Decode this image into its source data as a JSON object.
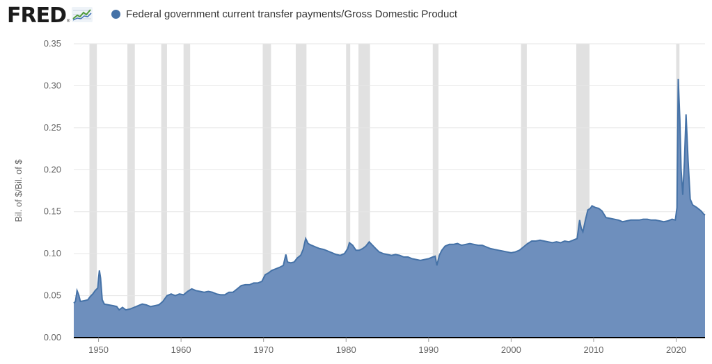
{
  "header": {
    "logo_text": "FRED",
    "logo_mark": "®",
    "logo_icon": "line-chart-icon"
  },
  "colors": {
    "series": "#4572a7",
    "fill": "#6e8fbd",
    "recession": "#e1e1e1",
    "grid": "#e6e6e6",
    "axis": "#000000",
    "text": "#666666"
  },
  "chart_data": {
    "type": "area",
    "title": "",
    "ylabel": "Bil. of $/Bil. of $",
    "xlabel": "",
    "ylim": [
      0,
      0.35
    ],
    "xlim": [
      1947.0,
      2023.5
    ],
    "grid": true,
    "legend_position": "top-left",
    "x_ticks": [
      "1950",
      "1960",
      "1970",
      "1980",
      "1990",
      "2000",
      "2010",
      "2020"
    ],
    "y_ticks": [
      "0.00",
      "0.05",
      "0.10",
      "0.15",
      "0.20",
      "0.25",
      "0.30",
      "0.35"
    ],
    "recessions": [
      [
        1948.9,
        1949.8
      ],
      [
        1953.5,
        1954.4
      ],
      [
        1957.6,
        1958.3
      ],
      [
        1960.3,
        1961.1
      ],
      [
        1969.9,
        1970.9
      ],
      [
        1973.9,
        1975.2
      ],
      [
        1980.0,
        1980.5
      ],
      [
        1981.5,
        1982.9
      ],
      [
        1990.5,
        1991.2
      ],
      [
        2001.2,
        2001.9
      ],
      [
        2007.9,
        2009.5
      ],
      [
        2020.0,
        2020.4
      ]
    ],
    "series": [
      {
        "name": "Federal government current transfer payments/Gross Domestic Product",
        "points": [
          [
            1947.0,
            0.041
          ],
          [
            1947.2,
            0.043
          ],
          [
            1947.4,
            0.056
          ],
          [
            1947.6,
            0.051
          ],
          [
            1947.8,
            0.043
          ],
          [
            1948.3,
            0.044
          ],
          [
            1948.7,
            0.045
          ],
          [
            1949.0,
            0.049
          ],
          [
            1949.3,
            0.052
          ],
          [
            1949.6,
            0.056
          ],
          [
            1949.9,
            0.059
          ],
          [
            1950.0,
            0.071
          ],
          [
            1950.1,
            0.08
          ],
          [
            1950.25,
            0.071
          ],
          [
            1950.45,
            0.045
          ],
          [
            1950.7,
            0.04
          ],
          [
            1951.2,
            0.039
          ],
          [
            1951.8,
            0.038
          ],
          [
            1952.2,
            0.037
          ],
          [
            1952.5,
            0.033
          ],
          [
            1952.9,
            0.036
          ],
          [
            1953.3,
            0.033
          ],
          [
            1953.8,
            0.034
          ],
          [
            1954.3,
            0.036
          ],
          [
            1954.8,
            0.038
          ],
          [
            1955.3,
            0.04
          ],
          [
            1955.8,
            0.039
          ],
          [
            1956.3,
            0.037
          ],
          [
            1956.8,
            0.038
          ],
          [
            1957.3,
            0.039
          ],
          [
            1957.8,
            0.043
          ],
          [
            1958.3,
            0.05
          ],
          [
            1958.8,
            0.052
          ],
          [
            1959.3,
            0.05
          ],
          [
            1959.8,
            0.052
          ],
          [
            1960.3,
            0.051
          ],
          [
            1960.8,
            0.055
          ],
          [
            1961.3,
            0.058
          ],
          [
            1961.8,
            0.056
          ],
          [
            1962.3,
            0.055
          ],
          [
            1962.8,
            0.054
          ],
          [
            1963.3,
            0.055
          ],
          [
            1963.8,
            0.054
          ],
          [
            1964.3,
            0.052
          ],
          [
            1964.8,
            0.051
          ],
          [
            1965.3,
            0.051
          ],
          [
            1965.8,
            0.054
          ],
          [
            1966.3,
            0.054
          ],
          [
            1966.8,
            0.058
          ],
          [
            1967.3,
            0.062
          ],
          [
            1967.8,
            0.063
          ],
          [
            1968.3,
            0.063
          ],
          [
            1968.8,
            0.065
          ],
          [
            1969.3,
            0.065
          ],
          [
            1969.8,
            0.067
          ],
          [
            1970.2,
            0.075
          ],
          [
            1970.6,
            0.077
          ],
          [
            1971.0,
            0.08
          ],
          [
            1971.5,
            0.082
          ],
          [
            1972.0,
            0.084
          ],
          [
            1972.4,
            0.086
          ],
          [
            1972.7,
            0.099
          ],
          [
            1972.9,
            0.09
          ],
          [
            1973.3,
            0.089
          ],
          [
            1973.7,
            0.09
          ],
          [
            1974.1,
            0.095
          ],
          [
            1974.5,
            0.098
          ],
          [
            1974.8,
            0.105
          ],
          [
            1975.1,
            0.118
          ],
          [
            1975.4,
            0.112
          ],
          [
            1975.8,
            0.11
          ],
          [
            1976.3,
            0.108
          ],
          [
            1976.8,
            0.106
          ],
          [
            1977.3,
            0.105
          ],
          [
            1977.8,
            0.103
          ],
          [
            1978.3,
            0.101
          ],
          [
            1978.8,
            0.099
          ],
          [
            1979.3,
            0.098
          ],
          [
            1979.8,
            0.1
          ],
          [
            1980.2,
            0.106
          ],
          [
            1980.4,
            0.113
          ],
          [
            1980.8,
            0.11
          ],
          [
            1981.2,
            0.104
          ],
          [
            1981.6,
            0.104
          ],
          [
            1982.0,
            0.106
          ],
          [
            1982.4,
            0.109
          ],
          [
            1982.8,
            0.114
          ],
          [
            1983.2,
            0.11
          ],
          [
            1983.6,
            0.106
          ],
          [
            1984.0,
            0.102
          ],
          [
            1984.5,
            0.1
          ],
          [
            1985.0,
            0.099
          ],
          [
            1985.5,
            0.098
          ],
          [
            1986.0,
            0.099
          ],
          [
            1986.5,
            0.098
          ],
          [
            1987.0,
            0.096
          ],
          [
            1987.5,
            0.096
          ],
          [
            1988.0,
            0.094
          ],
          [
            1988.5,
            0.093
          ],
          [
            1989.0,
            0.092
          ],
          [
            1989.5,
            0.093
          ],
          [
            1990.0,
            0.094
          ],
          [
            1990.5,
            0.096
          ],
          [
            1990.8,
            0.097
          ],
          [
            1991.0,
            0.086
          ],
          [
            1991.3,
            0.098
          ],
          [
            1991.6,
            0.104
          ],
          [
            1992.0,
            0.109
          ],
          [
            1992.5,
            0.111
          ],
          [
            1993.0,
            0.111
          ],
          [
            1993.5,
            0.112
          ],
          [
            1994.0,
            0.11
          ],
          [
            1994.5,
            0.111
          ],
          [
            1995.0,
            0.112
          ],
          [
            1995.5,
            0.111
          ],
          [
            1996.0,
            0.11
          ],
          [
            1996.5,
            0.11
          ],
          [
            1997.0,
            0.108
          ],
          [
            1997.5,
            0.106
          ],
          [
            1998.0,
            0.105
          ],
          [
            1998.5,
            0.104
          ],
          [
            1999.0,
            0.103
          ],
          [
            1999.5,
            0.102
          ],
          [
            2000.0,
            0.101
          ],
          [
            2000.5,
            0.102
          ],
          [
            2001.0,
            0.104
          ],
          [
            2001.5,
            0.108
          ],
          [
            2002.0,
            0.112
          ],
          [
            2002.5,
            0.115
          ],
          [
            2003.0,
            0.115
          ],
          [
            2003.5,
            0.116
          ],
          [
            2004.0,
            0.115
          ],
          [
            2004.5,
            0.114
          ],
          [
            2005.0,
            0.113
          ],
          [
            2005.5,
            0.114
          ],
          [
            2006.0,
            0.113
          ],
          [
            2006.5,
            0.115
          ],
          [
            2007.0,
            0.114
          ],
          [
            2007.5,
            0.116
          ],
          [
            2008.0,
            0.118
          ],
          [
            2008.3,
            0.14
          ],
          [
            2008.5,
            0.13
          ],
          [
            2008.7,
            0.126
          ],
          [
            2009.0,
            0.14
          ],
          [
            2009.3,
            0.152
          ],
          [
            2009.6,
            0.154
          ],
          [
            2009.8,
            0.157
          ],
          [
            2010.2,
            0.155
          ],
          [
            2010.6,
            0.154
          ],
          [
            2011.0,
            0.151
          ],
          [
            2011.5,
            0.143
          ],
          [
            2012.0,
            0.142
          ],
          [
            2012.5,
            0.141
          ],
          [
            2013.0,
            0.14
          ],
          [
            2013.5,
            0.138
          ],
          [
            2014.0,
            0.139
          ],
          [
            2014.5,
            0.14
          ],
          [
            2015.0,
            0.14
          ],
          [
            2015.5,
            0.14
          ],
          [
            2016.0,
            0.141
          ],
          [
            2016.5,
            0.141
          ],
          [
            2017.0,
            0.14
          ],
          [
            2017.5,
            0.14
          ],
          [
            2018.0,
            0.139
          ],
          [
            2018.5,
            0.138
          ],
          [
            2019.0,
            0.139
          ],
          [
            2019.5,
            0.141
          ],
          [
            2019.9,
            0.14
          ],
          [
            2020.1,
            0.155
          ],
          [
            2020.25,
            0.308
          ],
          [
            2020.45,
            0.26
          ],
          [
            2020.6,
            0.2
          ],
          [
            2020.8,
            0.17
          ],
          [
            2021.0,
            0.21
          ],
          [
            2021.2,
            0.266
          ],
          [
            2021.45,
            0.21
          ],
          [
            2021.7,
            0.165
          ],
          [
            2022.0,
            0.158
          ],
          [
            2022.5,
            0.155
          ],
          [
            2023.0,
            0.151
          ],
          [
            2023.35,
            0.147
          ],
          [
            2023.5,
            0.146
          ]
        ]
      }
    ]
  }
}
